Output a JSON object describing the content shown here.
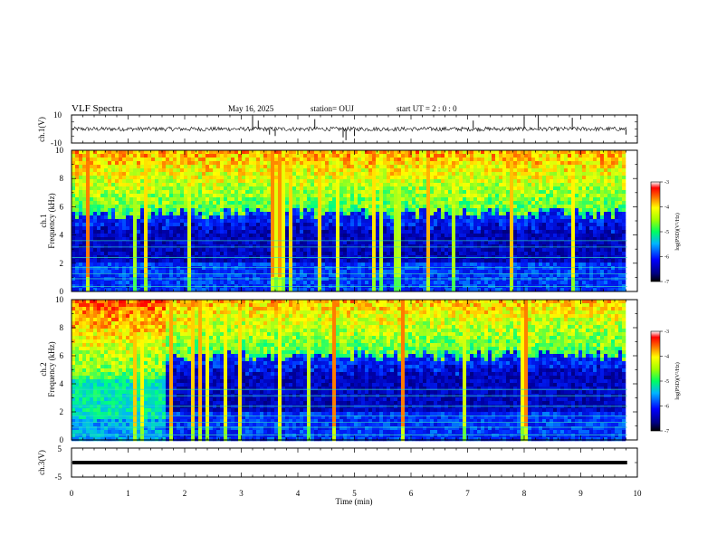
{
  "header": {
    "title": "VLF Spectra",
    "date": "May 16, 2025",
    "station": "station= OUJ",
    "start": "start  UT  =   2  : 0  : 0"
  },
  "chart_data": {
    "type": "heatmap",
    "x_axis": {
      "label": "Time  (min)",
      "range": [
        0,
        10
      ],
      "ticks": [
        "0",
        "1",
        "2",
        "3",
        "4",
        "5",
        "6",
        "7",
        "8",
        "9",
        "10"
      ]
    },
    "panels": [
      {
        "id": "ch1-waveform",
        "type": "line",
        "ylabel": "ch.1(V)",
        "ylim": [
          -10,
          10
        ],
        "yticks": [
          "10",
          "-10"
        ],
        "baseline": 0,
        "spikes": [
          {
            "t": 3.2,
            "v": 9
          },
          {
            "t": 3.3,
            "v": 6
          },
          {
            "t": 3.5,
            "v": -4
          },
          {
            "t": 3.6,
            "v": -5
          },
          {
            "t": 4.3,
            "v": 7
          },
          {
            "t": 4.8,
            "v": -6
          },
          {
            "t": 4.85,
            "v": -8
          },
          {
            "t": 5.0,
            "v": -5
          },
          {
            "t": 7.1,
            "v": 6
          },
          {
            "t": 8.0,
            "v": 9
          },
          {
            "t": 8.25,
            "v": 10
          },
          {
            "t": 8.85,
            "v": 8
          },
          {
            "t": 9.8,
            "v": -4
          }
        ]
      },
      {
        "id": "ch1-spectrogram",
        "type": "heatmap",
        "ylabel": "ch.1\nFrequency (kHz)",
        "ylim": [
          0,
          10
        ],
        "yticks": [
          "0",
          "2",
          "4",
          "6",
          "8",
          "10"
        ],
        "colorbar": {
          "title": "log(PSD)(V²/Hz)",
          "range": [
            -7,
            -3
          ],
          "ticks": [
            "-3",
            "-4",
            "-5",
            "-6",
            "-7"
          ]
        },
        "cutoff_khz": 5.5,
        "regime_change_min": null
      },
      {
        "id": "ch2-spectrogram",
        "type": "heatmap",
        "ylabel": "ch.2\nFrequency (kHz)",
        "ylim": [
          0,
          10
        ],
        "yticks": [
          "0",
          "2",
          "4",
          "6",
          "8",
          "10"
        ],
        "colorbar": {
          "title": "log(PSD)(V²/Hz)",
          "range": [
            -7,
            -3
          ],
          "ticks": [
            "-3",
            "-4",
            "-5",
            "-6",
            "-7"
          ]
        },
        "cutoff_khz": 6.0,
        "regime_change_min": 1.65
      },
      {
        "id": "ch3-waveform",
        "type": "line",
        "ylabel": "ch.3(V)",
        "ylim": [
          -5,
          5
        ],
        "yticks": [
          "5",
          "-5"
        ],
        "baseline": 0
      }
    ],
    "data_end_min": 9.82,
    "colormap": [
      "#000080",
      "#0000ff",
      "#00a0ff",
      "#00ffff",
      "#00ff60",
      "#a0ff00",
      "#ffff00",
      "#ff8000",
      "#ff0000",
      "#ffffff"
    ]
  }
}
